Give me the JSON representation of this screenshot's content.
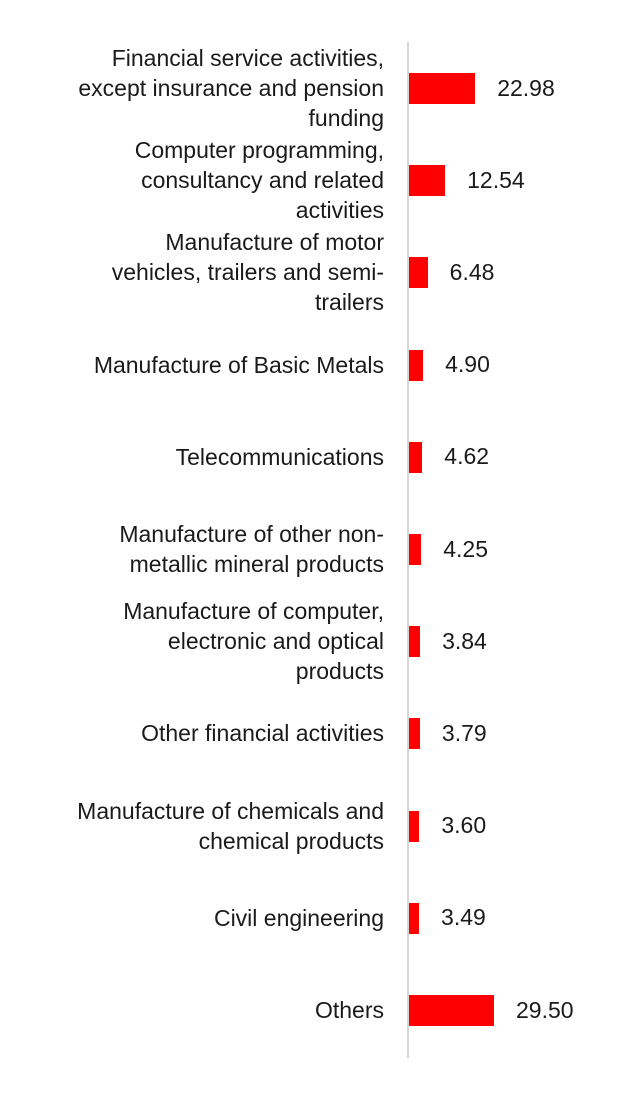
{
  "chart_data": {
    "type": "bar",
    "orientation": "horizontal",
    "categories": [
      "Financial service activities,\nexcept insurance and pension\nfunding",
      "Computer programming,\nconsultancy and related\nactivities",
      "Manufacture of motor\nvehicles, trailers and semi-\ntrailers",
      "Manufacture of Basic Metals",
      "Telecommunications",
      "Manufacture of other non-\nmetallic mineral products",
      "Manufacture of computer,\nelectronic and optical\nproducts",
      "Other financial activities",
      "Manufacture of chemicals and\nchemical products",
      "Civil engineering",
      "Others"
    ],
    "values": [
      22.98,
      12.54,
      6.48,
      4.9,
      4.62,
      4.25,
      3.84,
      3.79,
      3.6,
      3.49,
      29.5
    ],
    "value_labels": [
      "22.98",
      "12.54",
      "6.48",
      "4.90",
      "4.62",
      "4.25",
      "3.84",
      "3.79",
      "3.60",
      "3.49",
      "29.50"
    ],
    "title": "",
    "xlabel": "",
    "ylabel": "",
    "xlim": [
      0,
      29.5
    ],
    "grid": false,
    "legend": "none",
    "bar_color": "#ff0000",
    "axis_color": "#d6d6d6"
  }
}
